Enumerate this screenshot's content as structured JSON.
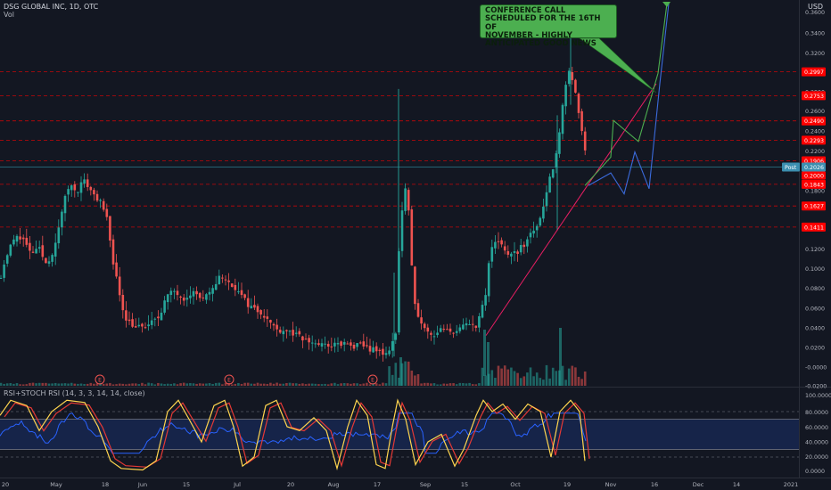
{
  "header": {
    "symbol": "DSG GLOBAL INC, 1D, OTC",
    "volume_label": "Vol",
    "currency": "USD",
    "indicator_label": "RSI+STOCH RSI (14, 3, 3, 14, 14, close)"
  },
  "callout": {
    "text": "CONFERENCE CALL\nSCHEDULED FOR THE 16TH OF\nNOVEMBER - HIGHLY\nANTICIPATED GOOD NEWS"
  },
  "colors": {
    "background": "#131722",
    "up": "#26a69a",
    "down": "#ef5350",
    "level": "#ff0000",
    "rsi": "#2962ff",
    "stoch_k": "#ffd54f",
    "stoch_d": "#e53935",
    "projection_green": "#4caf50",
    "projection_blue": "#3b6bdc",
    "trendline": "#e91e63",
    "post_label": "#3c8fb0"
  },
  "price_axis": {
    "ticks": [
      "0.3600",
      "0.3400",
      "0.3200",
      "0.2800",
      "0.2600",
      "0.2400",
      "0.2200",
      "0.1800",
      "0.1200",
      "0.1000",
      "0.0800",
      "0.0600",
      "0.0400",
      "0.0200",
      "-0.0000",
      "-0.0200"
    ],
    "levels": [
      "0.2997",
      "0.2753",
      "0.2490",
      "0.2293",
      "0.1906",
      "0.1843",
      "0.1627",
      "0.1411"
    ],
    "current_price": "0.2026",
    "current_label": "0.2000",
    "post_label": "Post"
  },
  "rsi_axis": {
    "ticks": [
      "100.0000",
      "80.0000",
      "60.0000",
      "40.0000",
      "20.0000",
      "0.0000"
    ]
  },
  "time_axis": {
    "labels": [
      "20",
      "May",
      "18",
      "Jun",
      "15",
      "Jul",
      "20",
      "Aug",
      "17",
      "Sep",
      "15",
      "Oct",
      "19",
      "Nov",
      "16",
      "Dec",
      "14",
      "2021"
    ]
  },
  "earnings_markers": [
    "E",
    "E",
    "E"
  ],
  "chart_data": {
    "type": "candlestick",
    "instrument": "DSG GLOBAL INC, 1D, OTC",
    "y_range": [
      -0.02,
      0.365
    ],
    "horizontal_levels": [
      0.2997,
      0.2753,
      0.249,
      0.2293,
      0.1906,
      0.1843,
      0.1627,
      0.1411
    ],
    "current_price": 0.2026,
    "trendline_from": {
      "x": "Sep 21",
      "y": 0.04
    },
    "trendline_to": {
      "x": "Nov 16",
      "y": 0.28
    },
    "projection_green": [
      0.183,
      0.21,
      0.245,
      0.225,
      0.29,
      0.365
    ],
    "projection_blue": [
      0.183,
      0.19,
      0.2,
      0.175,
      0.215,
      0.18,
      0.28,
      0.365
    ],
    "rsi_bands": [
      70,
      30
    ],
    "rsi_range": [
      0,
      100
    ]
  }
}
